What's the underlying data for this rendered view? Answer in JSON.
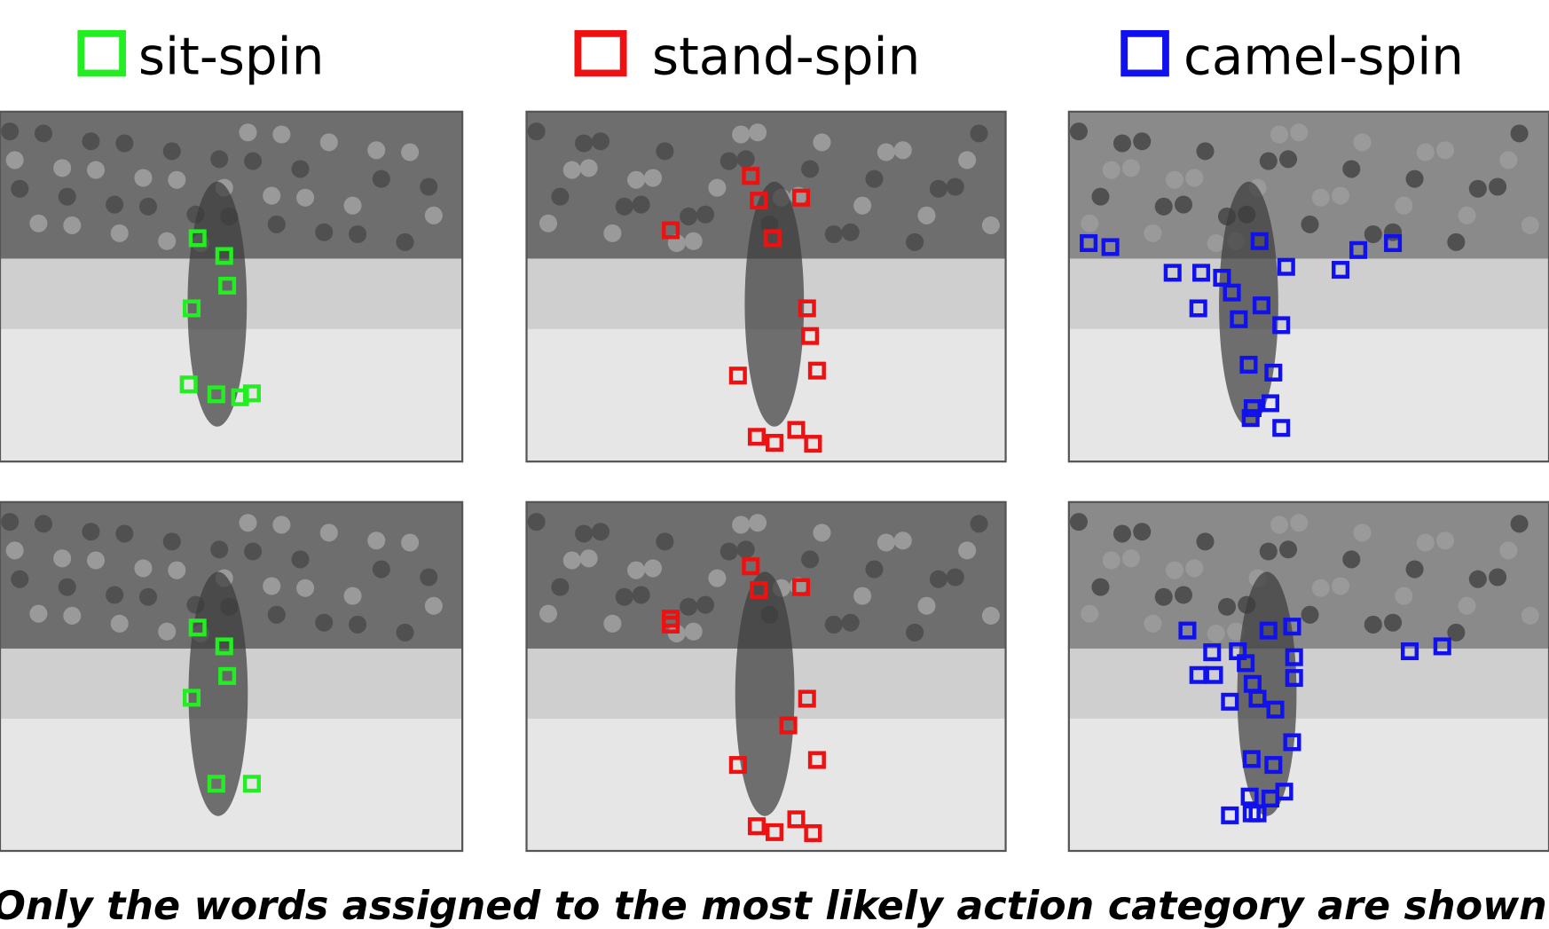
{
  "legend": [
    {
      "label": "sit-spin"
    },
    {
      "label": "stand-spin"
    },
    {
      "label": "camel-spin"
    }
  ],
  "caption": "Only the words assigned to the most likely action category are shown"
}
